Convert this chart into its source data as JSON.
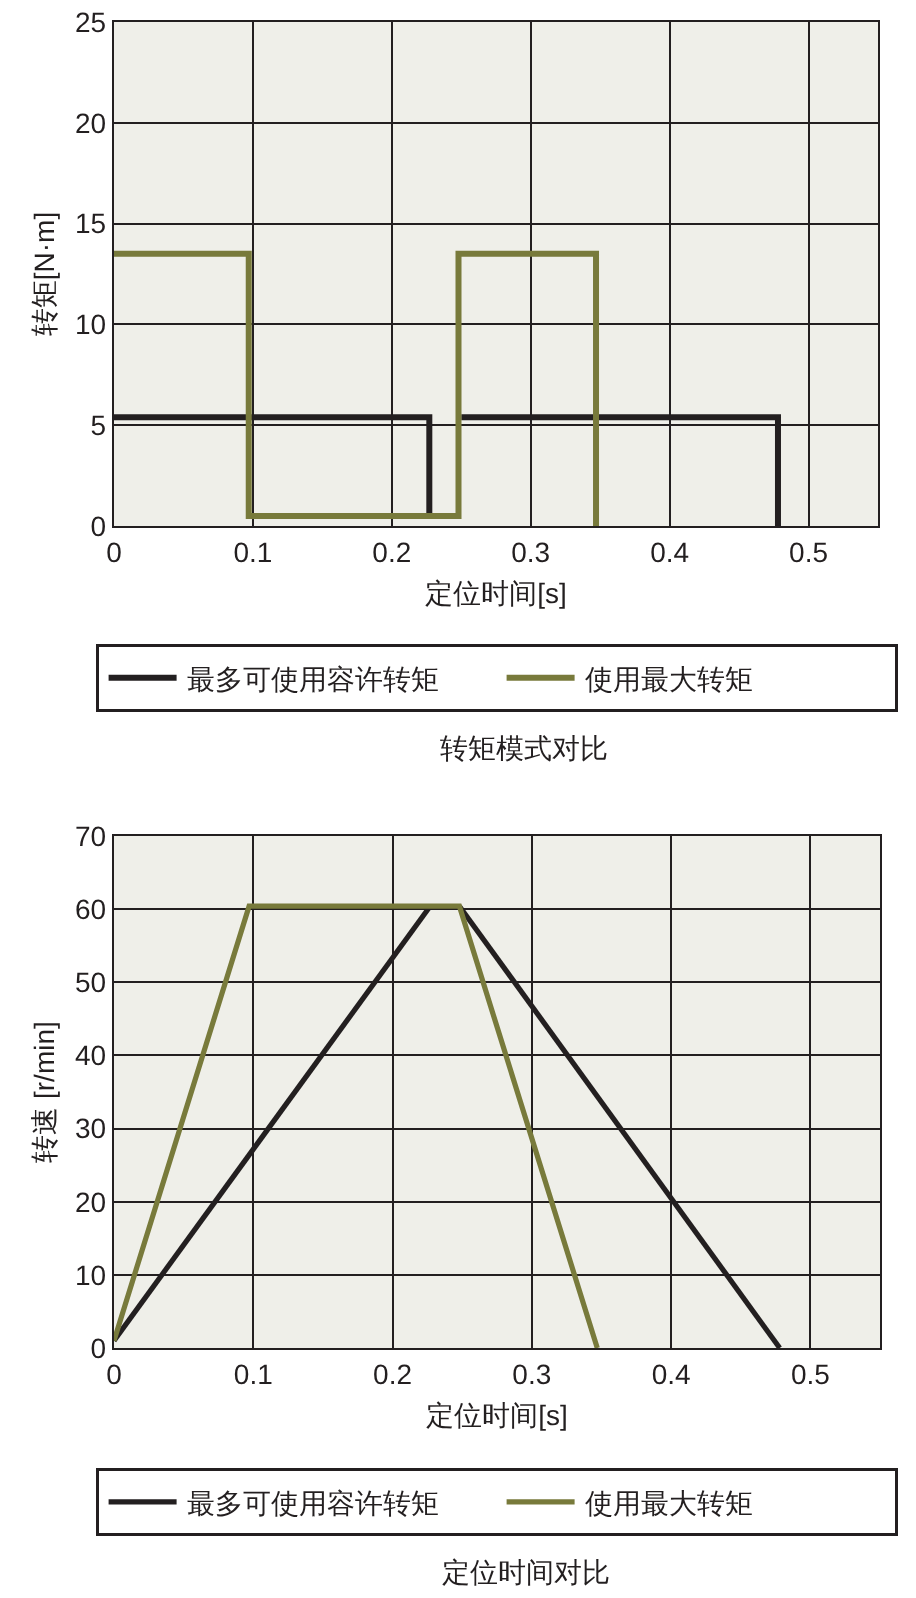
{
  "chart_data": [
    {
      "type": "line",
      "xlabel": "定位时间[s]",
      "ylabel": "转矩[N·m]",
      "annotations": [
        "转矩模式对比"
      ],
      "xlim": [
        0,
        0.55
      ],
      "xticks": [
        0,
        0.1,
        0.2,
        0.3,
        0.4,
        0.5
      ],
      "ylim": [
        0,
        25
      ],
      "yticks": [
        0,
        5,
        10,
        15,
        20,
        25
      ],
      "grid": true,
      "legend": "bottom",
      "series": [
        {
          "name": "最多可使用容许转矩",
          "color": "#231f20",
          "x": [
            0,
            0.227,
            0.227,
            null,
            0.25,
            0.478,
            0.478
          ],
          "values": [
            5.4,
            5.4,
            0.5,
            null,
            5.4,
            5.4,
            0
          ]
        },
        {
          "name": "使用最大转矩",
          "color": "#787a3b",
          "x": [
            0,
            0.097,
            0.097,
            0.248,
            0.248,
            0.347,
            0.347
          ],
          "values": [
            13.5,
            13.5,
            0.5,
            0.5,
            13.5,
            13.5,
            0
          ]
        }
      ]
    },
    {
      "type": "line",
      "xlabel": "定位时间[s]",
      "ylabel": "转速 [r/min]",
      "annotations": [
        "定位时间对比"
      ],
      "xlim": [
        0,
        0.55
      ],
      "xticks": [
        0,
        0.1,
        0.2,
        0.3,
        0.4,
        0.5
      ],
      "ylim": [
        0,
        70
      ],
      "yticks": [
        0,
        10,
        20,
        30,
        40,
        50,
        60,
        70
      ],
      "grid": true,
      "legend": "bottom",
      "series": [
        {
          "name": "最多可使用容许转矩",
          "color": "#231f20",
          "x": [
            0,
            0.227,
            null,
            0.248,
            0.478
          ],
          "values": [
            1,
            60.4,
            null,
            60.4,
            0
          ]
        },
        {
          "name": "使用最大转矩",
          "color": "#787a3b",
          "x": [
            0,
            0.097,
            0.248,
            0.347
          ],
          "values": [
            1,
            60.4,
            60.4,
            0
          ]
        }
      ]
    }
  ]
}
